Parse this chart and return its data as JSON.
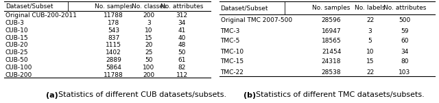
{
  "cub_headers": [
    "Dataset/Subset",
    "No. samples",
    "No. classes",
    "No. attributes"
  ],
  "cub_rows": [
    [
      "Original CUB-200-2011",
      "11788",
      "200",
      "312"
    ],
    [
      "CUB-3",
      "178",
      "3",
      "34"
    ],
    [
      "CUB-10",
      "543",
      "10",
      "41"
    ],
    [
      "CUB-15",
      "837",
      "15",
      "40"
    ],
    [
      "CUB-20",
      "1115",
      "20",
      "48"
    ],
    [
      "CUB-25",
      "1402",
      "25",
      "50"
    ],
    [
      "CUB-50",
      "2889",
      "50",
      "61"
    ],
    [
      "CUB-100",
      "5864",
      "100",
      "82"
    ],
    [
      "CUB-200",
      "11788",
      "200",
      "112"
    ]
  ],
  "tmc_headers": [
    "Dataset/Subset",
    "No. samples",
    "No. labels",
    "No. attributes"
  ],
  "tmc_rows": [
    [
      "Original TMC 2007-500",
      "28596",
      "22",
      "500"
    ],
    [
      "TMC-3",
      "16947",
      "3",
      "59"
    ],
    [
      "TMC-5",
      "18565",
      "5",
      "60"
    ],
    [
      "TMC-10",
      "21454",
      "10",
      "34"
    ],
    [
      "TMC-15",
      "24318",
      "15",
      "80"
    ],
    [
      "TMC-22",
      "28538",
      "22",
      "103"
    ]
  ],
  "bg_color": "#ffffff",
  "line_color": "#000000",
  "text_color": "#000000",
  "font_size": 6.5,
  "caption_font_size": 8.0
}
